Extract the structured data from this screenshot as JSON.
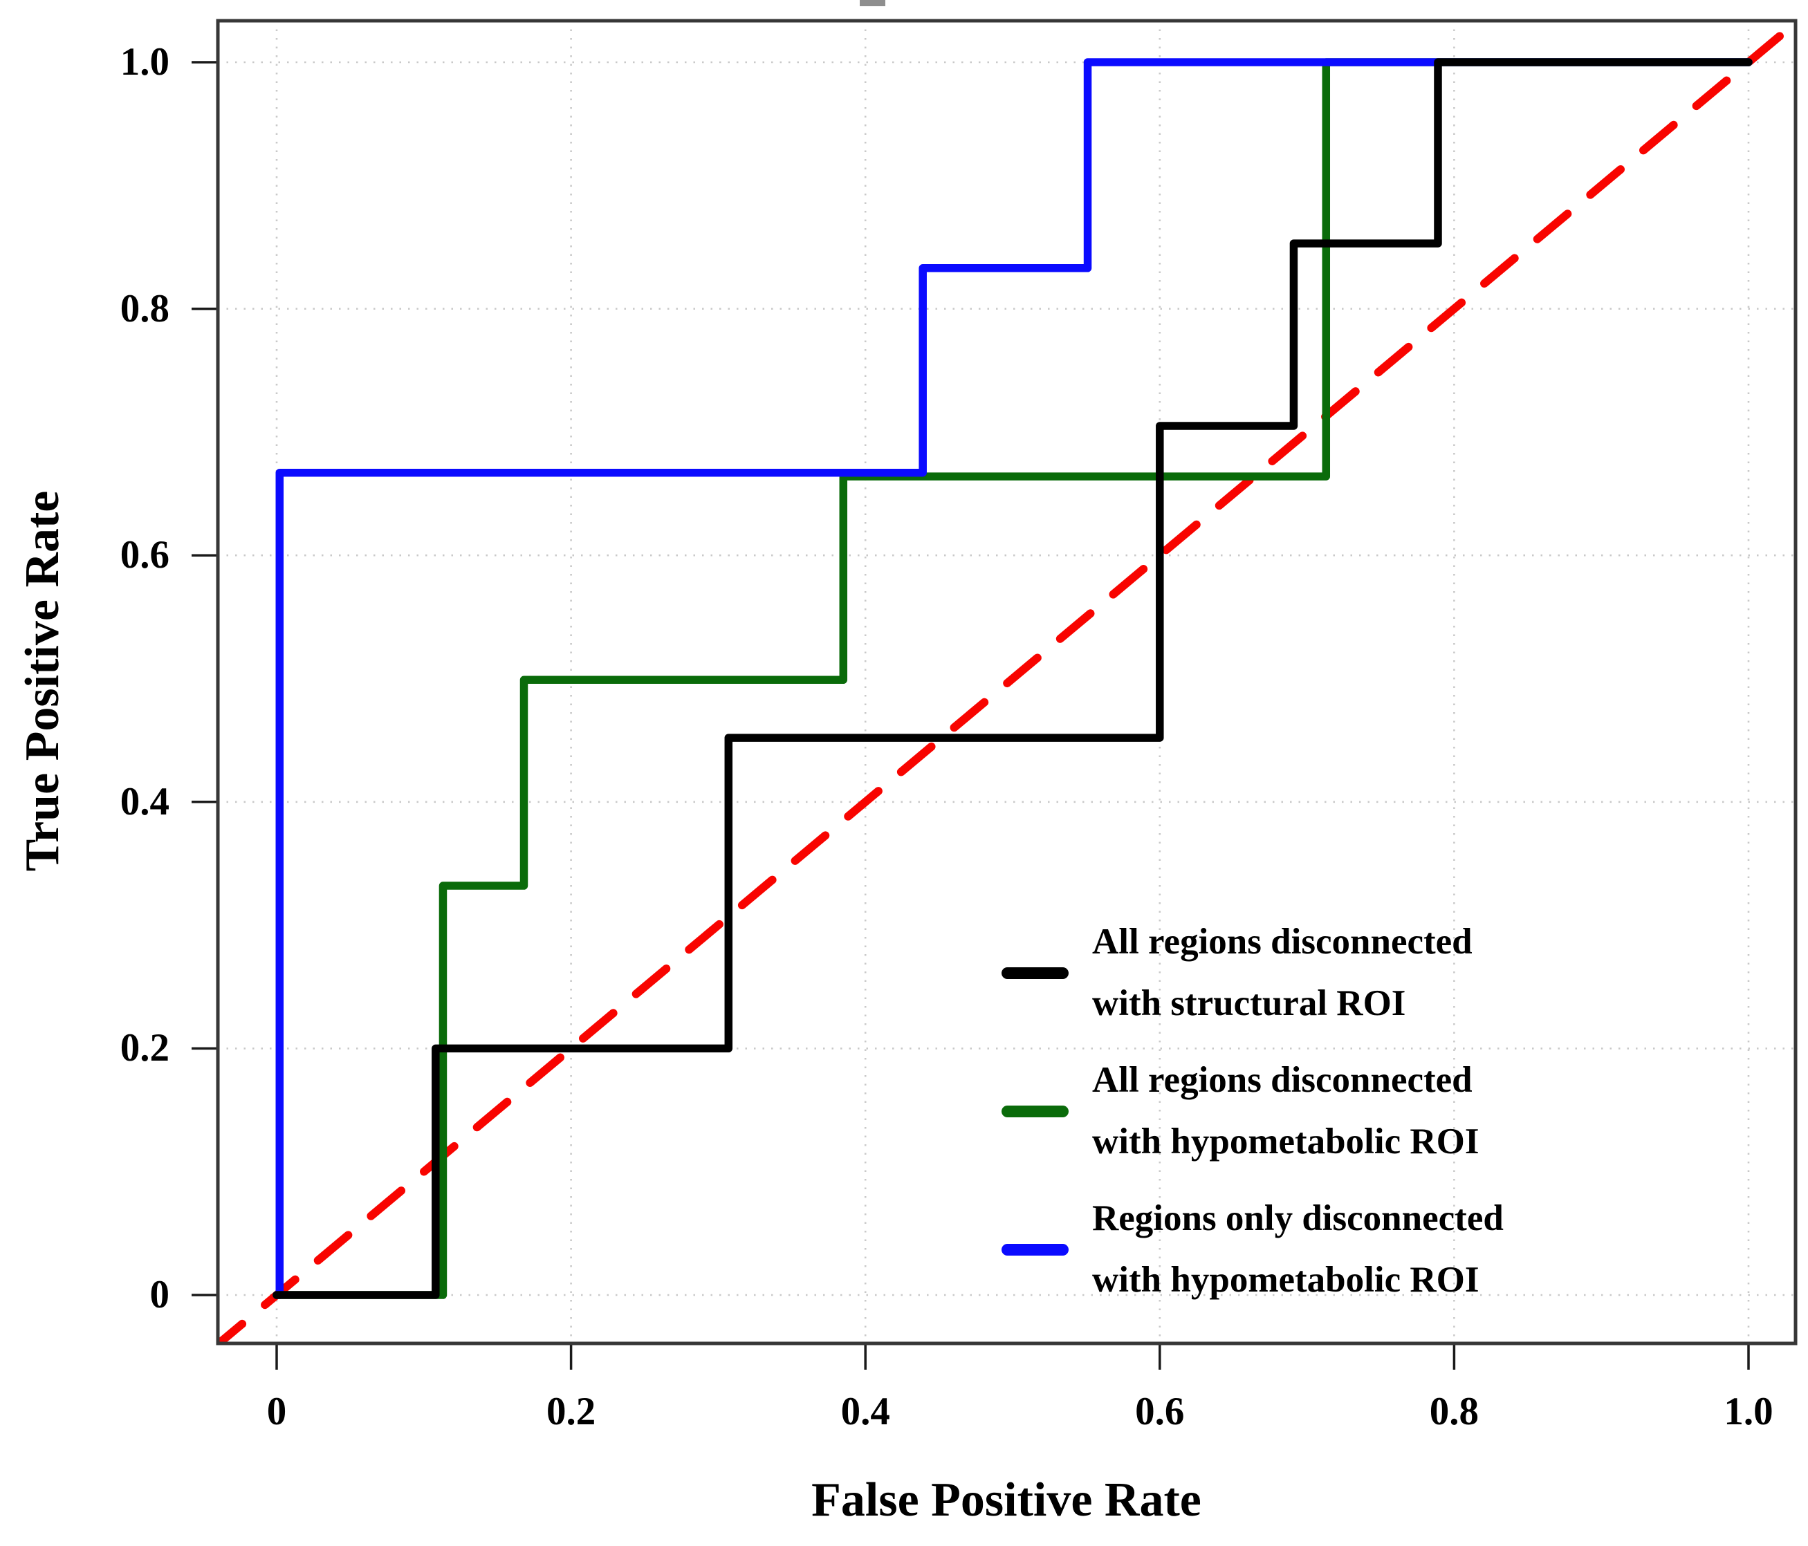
{
  "chart_data": {
    "type": "line",
    "subtype": "roc-step-curves",
    "title": "",
    "xlabel": "False Positive Rate",
    "ylabel": "True Positive Rate",
    "xlim": [
      -0.04,
      1.032
    ],
    "ylim": [
      -0.039,
      1.034
    ],
    "grid": "dotted",
    "legend_position": "lower right",
    "x_ticks": [
      0,
      0.2,
      0.4,
      0.6,
      0.8,
      1.0
    ],
    "x_tick_labels": [
      "0",
      "0.2",
      "0.4",
      "0.6",
      "0.8",
      "1.0"
    ],
    "y_ticks": [
      0,
      0.2,
      0.4,
      0.6,
      0.8,
      1.0
    ],
    "y_tick_labels": [
      "0",
      "0.2",
      "0.4",
      "0.6",
      "0.8",
      "1.0"
    ],
    "reference_line": {
      "name": "chance diagonal",
      "color": "#f80400",
      "style": "dashed",
      "from": [
        0,
        0
      ],
      "to": [
        1,
        1
      ]
    },
    "series": [
      {
        "name": "All regions disconnected with structural ROI",
        "color": "#000000",
        "z": 3,
        "points": [
          [
            0,
            0
          ],
          [
            0.108,
            0
          ],
          [
            0.108,
            0.2
          ],
          [
            0.307,
            0.2
          ],
          [
            0.307,
            0.452
          ],
          [
            0.6,
            0.452
          ],
          [
            0.6,
            0.705
          ],
          [
            0.691,
            0.705
          ],
          [
            0.691,
            0.853
          ],
          [
            0.789,
            0.853
          ],
          [
            0.789,
            1
          ],
          [
            1,
            1
          ]
        ]
      },
      {
        "name": "All regions disconnected with hypometabolic ROI",
        "color": "#0a6b0a",
        "z": 1,
        "points": [
          [
            0,
            0
          ],
          [
            0.113,
            0
          ],
          [
            0.113,
            0.332
          ],
          [
            0.168,
            0.332
          ],
          [
            0.168,
            0.499
          ],
          [
            0.385,
            0.499
          ],
          [
            0.385,
            0.664
          ],
          [
            0.713,
            0.664
          ],
          [
            0.713,
            1
          ],
          [
            1,
            1
          ]
        ]
      },
      {
        "name": "Regions only disconnected with hypometabolic ROI",
        "color": "#0b0bff",
        "z": 2,
        "points": [
          [
            0,
            0
          ],
          [
            0.002,
            0
          ],
          [
            0.002,
            0.667
          ],
          [
            0.439,
            0.667
          ],
          [
            0.439,
            0.833
          ],
          [
            0.551,
            0.833
          ],
          [
            0.551,
            1
          ],
          [
            1,
            1
          ]
        ]
      }
    ]
  },
  "legend": {
    "entries": [
      {
        "label_line1": "All regions disconnected",
        "label_line2": "with structural ROI",
        "color": "#000000"
      },
      {
        "label_line1": "All regions disconnected",
        "label_line2": "with hypometabolic ROI",
        "color": "#0a6b0a"
      },
      {
        "label_line1": "Regions only disconnected",
        "label_line2": "with hypometabolic ROI",
        "color": "#0b0bff"
      }
    ]
  },
  "style": {
    "grid_color": "#c9c9c9",
    "border_color": "#373737",
    "tick_color": "#1a1a1a",
    "background": "#ffffff"
  }
}
